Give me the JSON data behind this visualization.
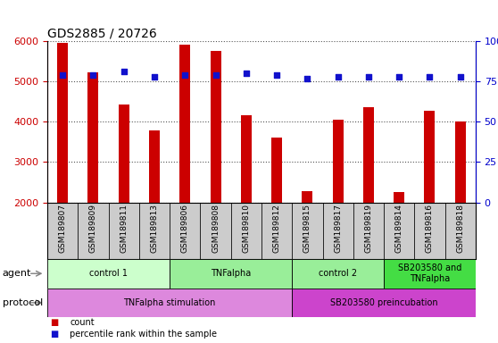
{
  "title": "GDS2885 / 20726",
  "samples": [
    "GSM189807",
    "GSM189809",
    "GSM189811",
    "GSM189813",
    "GSM189806",
    "GSM189808",
    "GSM189810",
    "GSM189812",
    "GSM189815",
    "GSM189817",
    "GSM189819",
    "GSM189814",
    "GSM189816",
    "GSM189818"
  ],
  "counts": [
    5950,
    5230,
    4430,
    3780,
    5920,
    5760,
    4160,
    3600,
    2280,
    4060,
    4360,
    2250,
    4280,
    4000
  ],
  "percentile_ranks": [
    79,
    79,
    81,
    78,
    79,
    79,
    80,
    79,
    77,
    78,
    78,
    78,
    78,
    78
  ],
  "bar_color": "#cc0000",
  "dot_color": "#1111cc",
  "ylim_left": [
    2000,
    6000
  ],
  "ylim_right": [
    0,
    100
  ],
  "yticks_left": [
    2000,
    3000,
    4000,
    5000,
    6000
  ],
  "yticks_right": [
    0,
    25,
    50,
    75,
    100
  ],
  "agent_groups": [
    {
      "label": "control 1",
      "start": 0,
      "end": 3,
      "color": "#ccffcc"
    },
    {
      "label": "TNFalpha",
      "start": 4,
      "end": 7,
      "color": "#99ee99"
    },
    {
      "label": "control 2",
      "start": 8,
      "end": 10,
      "color": "#99ee99"
    },
    {
      "label": "SB203580 and\nTNFalpha",
      "start": 11,
      "end": 13,
      "color": "#44dd44"
    }
  ],
  "protocol_groups": [
    {
      "label": "TNFalpha stimulation",
      "start": 0,
      "end": 7,
      "color": "#dd88dd"
    },
    {
      "label": "SB203580 preincubation",
      "start": 8,
      "end": 13,
      "color": "#cc44cc"
    }
  ],
  "agent_label": "agent",
  "protocol_label": "protocol",
  "bar_width": 0.35,
  "dot_size": 25,
  "grid_color": "#555555",
  "background_color": "#ffffff",
  "sample_box_color": "#cccccc",
  "left_tick_color": "#cc0000",
  "right_tick_color": "#0000cc"
}
